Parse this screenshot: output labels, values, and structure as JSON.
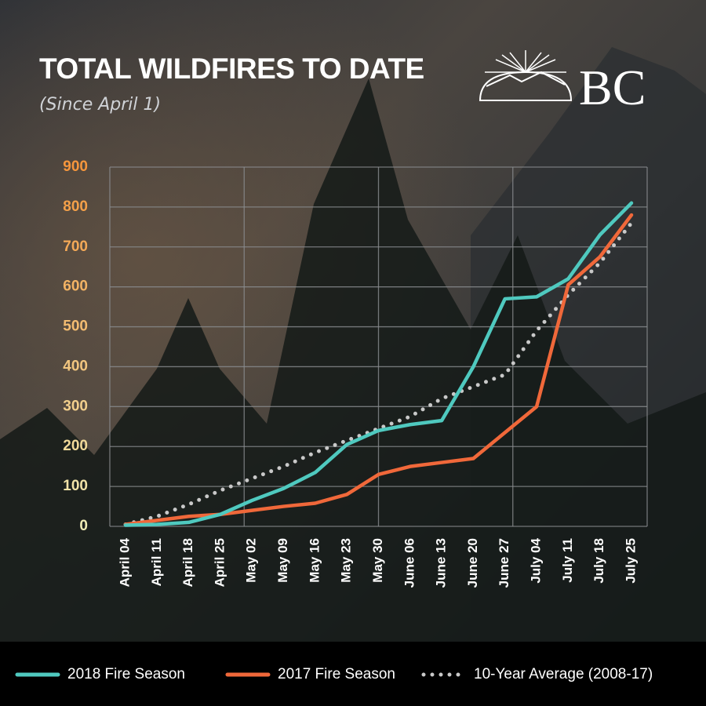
{
  "logo": {
    "text": "BC"
  },
  "chart_data": {
    "type": "line",
    "title": "TOTAL WILDFIRES TO DATE",
    "subtitle": "(Since April 1)",
    "categories": [
      "April 04",
      "April 11",
      "April 18",
      "April 25",
      "May 02",
      "May 09",
      "May 16",
      "May 23",
      "May 30",
      "June 06",
      "June 13",
      "June 20",
      "June 27",
      "July 04",
      "July 11",
      "July 18",
      "July 25"
    ],
    "series": [
      {
        "name": "2018 Fire Season",
        "color": "#4fc9bf",
        "style": "solid",
        "values": [
          3,
          5,
          10,
          30,
          65,
          95,
          135,
          205,
          240,
          255,
          265,
          400,
          570,
          575,
          620,
          730,
          810
        ]
      },
      {
        "name": "2017 Fire Season",
        "color": "#f0683a",
        "style": "solid",
        "values": [
          5,
          15,
          25,
          30,
          40,
          50,
          58,
          80,
          130,
          150,
          160,
          170,
          235,
          300,
          605,
          675,
          780
        ]
      },
      {
        "name": "10-Year Average (2008-17)",
        "color": "#c9c9c9",
        "style": "dotted",
        "values": [
          5,
          25,
          55,
          90,
          120,
          150,
          185,
          215,
          245,
          275,
          320,
          350,
          380,
          490,
          580,
          660,
          760
        ]
      }
    ],
    "ylim": [
      0,
      900
    ],
    "yticks": [
      0,
      100,
      200,
      300,
      400,
      500,
      600,
      700,
      800,
      900
    ],
    "grid": true,
    "legend": "bottom"
  }
}
